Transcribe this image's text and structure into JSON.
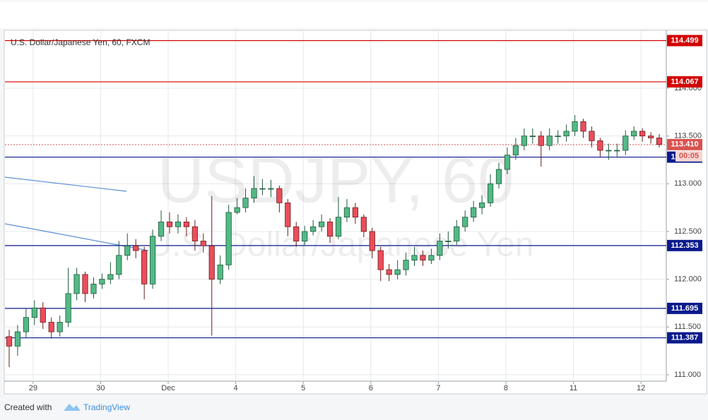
{
  "chart_data": {
    "type": "candlestick",
    "title": "U.S. Dollar/Japanese Yen, 60, FXCM",
    "watermark": "USDJPY, 60",
    "watermark_subtitle": "U.S. Dollar/Japanese Yen",
    "xlim": [
      0,
      235
    ],
    "xticks": [
      {
        "value": 10,
        "label": "29"
      },
      {
        "value": 34,
        "label": "30"
      },
      {
        "value": 58,
        "label": "Dec"
      },
      {
        "value": 82,
        "label": "4"
      },
      {
        "value": 106,
        "label": "5"
      },
      {
        "value": 130,
        "label": "6"
      },
      {
        "value": 154,
        "label": "7"
      },
      {
        "value": 178,
        "label": "8"
      },
      {
        "value": 202,
        "label": "11"
      },
      {
        "value": 226,
        "label": "12"
      }
    ],
    "ylim": [
      110.933,
      114.606
    ],
    "yticks": [
      {
        "value": 111,
        "label": "111.000"
      },
      {
        "value": 111.5,
        "label": "111.500"
      },
      {
        "value": 112,
        "label": "112.000"
      },
      {
        "value": 112.5,
        "label": "112.500"
      },
      {
        "value": 113,
        "label": "113.000"
      },
      {
        "value": 113.5,
        "label": "113.500"
      },
      {
        "value": 114,
        "label": "114.000"
      }
    ],
    "grid": true,
    "up_color": "#53b987",
    "down_color": "#eb4d5c",
    "x": [
      1.5,
      4.5,
      7.5,
      10.5,
      13.5,
      16.5,
      19.5,
      22.5,
      25.5,
      28.5,
      31.5,
      34.5,
      37.5,
      40.5,
      43.5,
      46.5,
      49.5,
      52.5,
      55.5,
      58.5,
      61.5,
      64.5,
      67.5,
      70.5,
      73.5,
      76.5,
      79.5,
      82.5,
      85.5,
      88.5,
      91.5,
      94.5,
      97.5,
      100.5,
      103.5,
      106.5,
      109.5,
      112.5,
      115.5,
      118.5,
      121.5,
      124.5,
      127.5,
      130.5,
      133.5,
      136.5,
      139.5,
      142.5,
      145.5,
      148.5,
      151.5,
      154.5,
      157.5,
      160.5,
      163.5,
      166.5,
      169.5,
      172.5,
      175.5,
      178.5,
      181.5,
      184.5,
      187.5,
      190.5,
      193.5,
      196.5,
      199.5,
      202.5,
      205.5,
      208.5,
      211.5,
      214.5,
      217.5,
      220.5,
      223.5,
      226.5,
      229.5,
      232.5
    ],
    "open": [
      111.4,
      111.3,
      111.45,
      111.6,
      111.7,
      111.55,
      111.45,
      111.55,
      111.85,
      112.05,
      111.85,
      111.95,
      112.0,
      112.05,
      112.25,
      112.35,
      112.3,
      111.95,
      112.45,
      112.6,
      112.55,
      112.6,
      112.55,
      112.4,
      112.35,
      112.0,
      112.15,
      112.7,
      112.75,
      112.85,
      112.95,
      112.95,
      112.95,
      112.8,
      112.55,
      112.4,
      112.5,
      112.55,
      112.6,
      112.45,
      112.65,
      112.75,
      112.65,
      112.5,
      112.3,
      112.1,
      112.05,
      112.1,
      112.2,
      112.25,
      112.2,
      112.25,
      112.4,
      112.4,
      112.55,
      112.65,
      112.75,
      112.8,
      113.0,
      113.15,
      113.3,
      113.4,
      113.5,
      113.5,
      113.4,
      113.5,
      113.5,
      113.55,
      113.65,
      113.55,
      113.45,
      113.35,
      113.35,
      113.35,
      113.5,
      113.55,
      113.5,
      113.48
    ],
    "high": [
      111.47,
      111.52,
      111.7,
      111.78,
      111.76,
      111.6,
      111.62,
      112.12,
      112.12,
      112.08,
      112.02,
      112.06,
      112.18,
      112.4,
      112.48,
      112.42,
      112.34,
      112.52,
      112.72,
      112.7,
      112.68,
      112.65,
      112.62,
      112.48,
      112.87,
      112.25,
      112.78,
      112.85,
      112.95,
      113.08,
      113.05,
      113.04,
      112.98,
      112.84,
      112.6,
      112.56,
      112.62,
      112.68,
      112.64,
      112.86,
      112.84,
      112.8,
      112.68,
      112.54,
      112.34,
      112.16,
      112.2,
      112.28,
      112.34,
      112.3,
      112.32,
      112.48,
      112.5,
      112.62,
      112.72,
      112.82,
      112.88,
      113.1,
      113.22,
      113.38,
      113.48,
      113.58,
      113.58,
      113.55,
      113.58,
      113.56,
      113.62,
      113.72,
      113.68,
      113.6,
      113.48,
      113.42,
      113.42,
      113.56,
      113.6,
      113.58,
      113.54,
      113.52
    ],
    "low": [
      111.08,
      111.2,
      111.38,
      111.52,
      111.48,
      111.38,
      111.4,
      111.5,
      111.78,
      111.76,
      111.8,
      111.9,
      111.95,
      112.0,
      112.2,
      112.22,
      111.79,
      111.9,
      112.4,
      112.48,
      112.48,
      112.45,
      112.3,
      112.28,
      111.41,
      111.95,
      112.1,
      112.68,
      112.7,
      112.8,
      112.88,
      112.86,
      112.7,
      112.45,
      112.34,
      112.36,
      112.46,
      112.5,
      112.38,
      112.42,
      112.6,
      112.58,
      112.44,
      112.22,
      111.98,
      111.98,
      112.0,
      112.04,
      112.14,
      112.14,
      112.16,
      112.2,
      112.32,
      112.36,
      112.5,
      112.6,
      112.68,
      112.76,
      112.95,
      113.1,
      113.25,
      113.35,
      113.42,
      113.18,
      113.35,
      113.42,
      113.44,
      113.5,
      113.48,
      113.38,
      113.28,
      113.25,
      113.28,
      113.3,
      113.46,
      113.44,
      113.42,
      113.38
    ],
    "close": [
      111.3,
      111.45,
      111.6,
      111.7,
      111.55,
      111.45,
      111.55,
      111.85,
      112.05,
      111.85,
      111.95,
      112.0,
      112.05,
      112.25,
      112.35,
      112.3,
      111.95,
      112.45,
      112.6,
      112.55,
      112.6,
      112.55,
      112.4,
      112.35,
      112.0,
      112.15,
      112.7,
      112.75,
      112.85,
      112.95,
      112.95,
      112.95,
      112.8,
      112.55,
      112.4,
      112.5,
      112.55,
      112.6,
      112.45,
      112.65,
      112.75,
      112.65,
      112.5,
      112.3,
      112.1,
      112.05,
      112.1,
      112.2,
      112.25,
      112.2,
      112.25,
      112.4,
      112.4,
      112.55,
      112.65,
      112.75,
      112.8,
      113.0,
      113.15,
      113.3,
      113.4,
      113.5,
      113.5,
      113.4,
      113.5,
      113.5,
      113.55,
      113.65,
      113.55,
      113.45,
      113.35,
      113.35,
      113.35,
      113.5,
      113.55,
      113.5,
      113.48,
      113.41
    ],
    "levels": [
      {
        "value": 114.499,
        "color": "#d40000"
      },
      {
        "value": 114.067,
        "color": "#d40000"
      },
      {
        "value": 113.279,
        "color": "#0a1a8c"
      },
      {
        "value": 112.353,
        "color": "#0a1a8c"
      },
      {
        "value": 111.695,
        "color": "#0a1a8c"
      },
      {
        "value": 111.387,
        "color": "#0a1a8c"
      }
    ],
    "last_price": {
      "value": 113.41,
      "label": "113.410",
      "color": "#d9534f"
    },
    "countdown": "00:05"
  },
  "footer": {
    "created_with": "Created with",
    "brand": "TradingView"
  }
}
